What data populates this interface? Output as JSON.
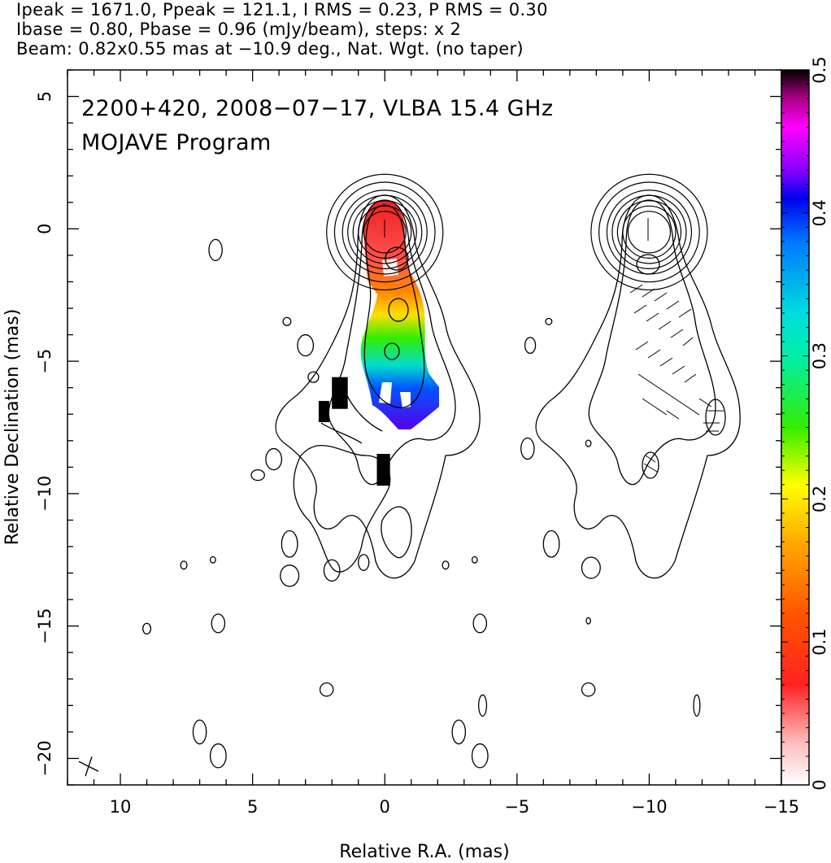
{
  "header": {
    "line1": "Ipeak = 1671.0, Ppeak = 121.1, I RMS = 0.23, P RMS = 0.30",
    "line2": "Ibase = 0.80, Pbase = 0.96 (mJy/beam), steps: x 2",
    "line3": "Beam: 0.82x0.55 mas at −10.9 deg., Nat. Wgt. (no taper)"
  },
  "chart_data": {
    "type": "contour",
    "title_line1": "2200+420, 2008−07−17, VLBA 15.4 GHz",
    "title_line2": "MOJAVE Program",
    "xlabel": "Relative R.A. (mas)",
    "ylabel": "Relative Declination (mas)",
    "xlim": [
      12,
      -15
    ],
    "ylim": [
      -21,
      6
    ],
    "x_ticks": [
      {
        "v": 10,
        "label": "10"
      },
      {
        "v": 5,
        "label": "5"
      },
      {
        "v": 0,
        "label": "0"
      },
      {
        "v": -5,
        "label": "−5"
      },
      {
        "v": -10,
        "label": "−10"
      },
      {
        "v": -15,
        "label": "−15"
      }
    ],
    "y_ticks": [
      {
        "v": 5,
        "label": "5"
      },
      {
        "v": 0,
        "label": "0"
      },
      {
        "v": -5,
        "label": "−5"
      },
      {
        "v": -10,
        "label": "−10"
      },
      {
        "v": -15,
        "label": "−15"
      },
      {
        "v": -20,
        "label": "−20"
      }
    ],
    "colorbar": {
      "range": [
        0,
        0.5
      ],
      "ticks": [
        {
          "v": 0,
          "label": "0"
        },
        {
          "v": 0.1,
          "label": "0.1"
        },
        {
          "v": 0.2,
          "label": "0.2"
        },
        {
          "v": 0.3,
          "label": "0.3"
        },
        {
          "v": 0.4,
          "label": "0.4"
        },
        {
          "v": 0.5,
          "label": "0.5"
        }
      ],
      "stops": [
        "#ffffff",
        "#ff9999",
        "#ff0000",
        "#ff8800",
        "#ffff00",
        "#00ee00",
        "#00eeee",
        "#0000ff",
        "#ff00ff",
        "#000000"
      ]
    },
    "core_contours": {
      "center": [
        0,
        0
      ],
      "radii": [
        [
          0.8,
          0.6
        ],
        [
          1.0,
          0.8
        ],
        [
          1.2,
          1.0
        ],
        [
          1.4,
          1.2
        ],
        [
          1.6,
          1.4
        ],
        [
          1.9,
          1.7
        ],
        [
          2.2,
          2.0
        ]
      ]
    },
    "islands": [
      [
        6.4,
        -0.8,
        0.25,
        0.4
      ],
      [
        3.7,
        -3.5,
        0.15,
        0.15
      ],
      [
        3.0,
        -4.4,
        0.3,
        0.4
      ],
      [
        2.7,
        -5.6,
        0.2,
        0.2
      ],
      [
        4.2,
        -8.7,
        0.3,
        0.4
      ],
      [
        4.8,
        -9.3,
        0.25,
        0.2
      ],
      [
        3.6,
        -11.9,
        0.3,
        0.5
      ],
      [
        3.6,
        -13.1,
        0.35,
        0.4
      ],
      [
        7.6,
        -12.7,
        0.12,
        0.15
      ],
      [
        6.5,
        -12.5,
        0.1,
        0.12
      ],
      [
        2.0,
        -12.9,
        0.3,
        0.4
      ],
      [
        0.8,
        -12.6,
        0.2,
        0.3
      ],
      [
        -2.3,
        -12.7,
        0.12,
        0.15
      ],
      [
        -3.4,
        -12.5,
        0.1,
        0.12
      ],
      [
        9.0,
        -15.1,
        0.15,
        0.2
      ],
      [
        6.3,
        -14.9,
        0.25,
        0.35
      ],
      [
        -3.6,
        -14.9,
        0.25,
        0.35
      ],
      [
        2.2,
        -17.4,
        0.25,
        0.25
      ],
      [
        7.0,
        -19.0,
        0.25,
        0.45
      ],
      [
        6.3,
        -19.9,
        0.3,
        0.45
      ],
      [
        -2.8,
        -19.0,
        0.25,
        0.45
      ],
      [
        -3.6,
        -19.9,
        0.3,
        0.45
      ],
      [
        -3.7,
        -18.0,
        0.15,
        0.4
      ],
      [
        -7.7,
        -17.4,
        0.25,
        0.25
      ],
      [
        -11.8,
        -18.0,
        0.12,
        0.4
      ],
      [
        -5.5,
        -4.4,
        0.2,
        0.3
      ],
      [
        -6.2,
        -3.5,
        0.12,
        0.12
      ],
      [
        -5.4,
        -8.3,
        0.25,
        0.4
      ],
      [
        -7.7,
        -8.1,
        0.1,
        0.12
      ],
      [
        -7.7,
        -14.8,
        0.08,
        0.12
      ],
      [
        -6.3,
        -11.9,
        0.3,
        0.5
      ],
      [
        -7.8,
        -12.8,
        0.35,
        0.4
      ]
    ],
    "pol_blocks": [
      [
        2.0,
        -5.6,
        0.6,
        1.2
      ],
      [
        2.5,
        -6.5,
        0.4,
        0.8
      ],
      [
        0.3,
        -8.5,
        0.5,
        1.2
      ]
    ],
    "beam": {
      "x": 11.2,
      "y": -20.3
    }
  }
}
